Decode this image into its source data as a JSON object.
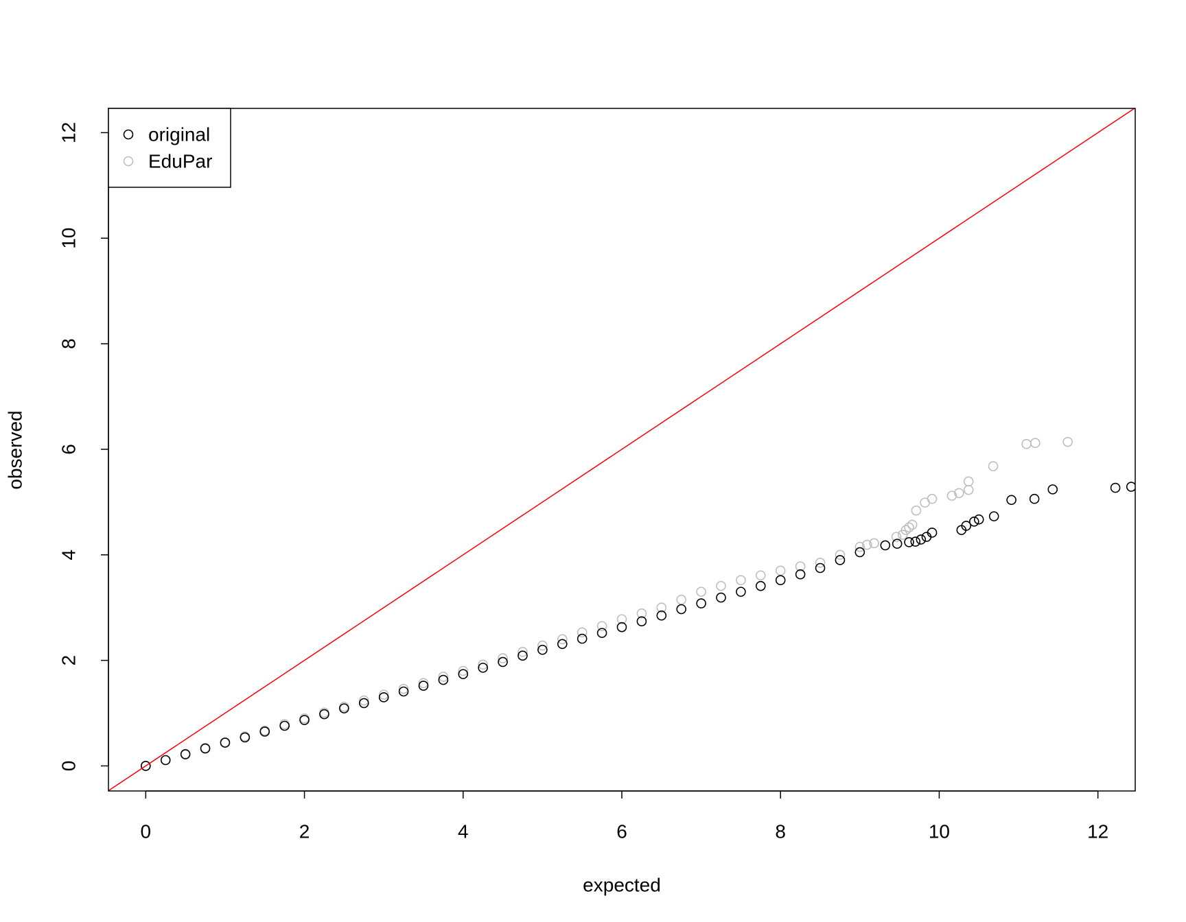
{
  "chart_data": {
    "type": "scatter",
    "x_label": "expected",
    "y_label": "observed",
    "xlim": [
      -0.47,
      12.47
    ],
    "ylim": [
      -0.475,
      12.46
    ],
    "xticks": [
      0,
      2,
      4,
      6,
      8,
      10,
      12
    ],
    "yticks": [
      0,
      2,
      4,
      6,
      8,
      10,
      12
    ],
    "grid": false,
    "legend": "top-left",
    "abline": {
      "intercept": 0,
      "slope": 1,
      "color": "#ff0000"
    },
    "series": [
      {
        "name": "original",
        "color": "#000000",
        "x": [
          0,
          0.25,
          0.5,
          0.75,
          1,
          1.25,
          1.5,
          1.75,
          2,
          2.25,
          2.5,
          2.75,
          3,
          3.25,
          3.5,
          3.75,
          4,
          4.25,
          4.5,
          4.75,
          5,
          5.25,
          5.5,
          5.75,
          6,
          6.25,
          6.5,
          6.75,
          7,
          7.25,
          7.5,
          7.75,
          8,
          8.25,
          8.5,
          8.75,
          9,
          9.32,
          9.47,
          9.62,
          9.7,
          9.77,
          9.84,
          9.91,
          10.28,
          10.34,
          10.44,
          10.5,
          10.69,
          10.91,
          11.2,
          11.43,
          12.22,
          12.42
        ],
        "values": [
          0,
          0.11,
          0.22,
          0.33,
          0.44,
          0.54,
          0.65,
          0.76,
          0.87,
          0.98,
          1.09,
          1.19,
          1.3,
          1.41,
          1.52,
          1.63,
          1.74,
          1.86,
          1.97,
          2.09,
          2.2,
          2.31,
          2.41,
          2.52,
          2.63,
          2.74,
          2.85,
          2.97,
          3.08,
          3.19,
          3.3,
          3.41,
          3.52,
          3.63,
          3.75,
          3.9,
          4.05,
          4.18,
          4.21,
          4.24,
          4.25,
          4.29,
          4.34,
          4.42,
          4.47,
          4.55,
          4.63,
          4.67,
          4.73,
          5.04,
          5.06,
          5.24,
          5.27,
          5.29
        ]
      },
      {
        "name": "EduPar",
        "color": "#bebebe",
        "x": [
          0,
          0.25,
          0.5,
          0.75,
          1,
          1.25,
          1.5,
          1.75,
          2,
          2.25,
          2.5,
          2.75,
          3,
          3.25,
          3.5,
          3.75,
          4,
          4.25,
          4.5,
          4.75,
          5,
          5.25,
          5.5,
          5.75,
          6,
          6.25,
          6.5,
          6.75,
          7,
          7.25,
          7.5,
          7.75,
          8,
          8.25,
          8.5,
          8.75,
          9,
          9.09,
          9.18,
          9.46,
          9.54,
          9.58,
          9.62,
          9.66,
          9.71,
          9.82,
          9.91,
          10.16,
          10.25,
          10.37,
          10.37,
          10.68,
          11.1,
          11.21,
          11.62
        ],
        "values": [
          0,
          0.11,
          0.23,
          0.34,
          0.45,
          0.56,
          0.67,
          0.79,
          0.9,
          1.01,
          1.12,
          1.24,
          1.35,
          1.46,
          1.57,
          1.69,
          1.8,
          1.92,
          2.04,
          2.16,
          2.28,
          2.4,
          2.53,
          2.65,
          2.78,
          2.89,
          3.0,
          3.15,
          3.3,
          3.41,
          3.52,
          3.61,
          3.7,
          3.78,
          3.85,
          4.0,
          4.15,
          4.19,
          4.22,
          4.34,
          4.38,
          4.47,
          4.52,
          4.57,
          4.84,
          4.99,
          5.06,
          5.12,
          5.17,
          5.23,
          5.39,
          5.68,
          6.1,
          6.12,
          6.14
        ]
      }
    ]
  }
}
